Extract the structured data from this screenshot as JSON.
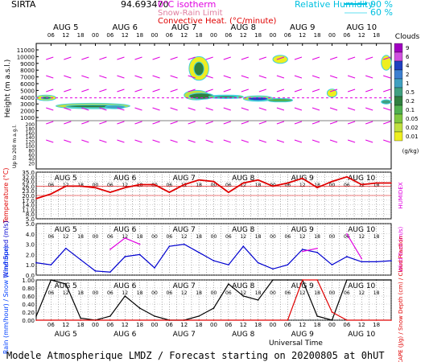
{
  "header": {
    "station": "SIRTA",
    "coord": "94.693470",
    "legend_iso": "0°C isotherm",
    "legend_snow": "Snow-Rain Limit",
    "legend_conv": "Convective Heat. (°C/minute)",
    "rh_label": "Relative Humidity",
    "rh_90": "90 %",
    "rh_60": "60 %"
  },
  "footer": {
    "title": "Modele Atmospherique LMDZ / Forecast starting on 20200805 at 0hUT",
    "time_label": "Universal Time"
  },
  "days": [
    "AUG 5",
    "AUG 6",
    "AUG 7",
    "AUG 8",
    "AUG 9",
    "AUG 10"
  ],
  "hours": [
    "06",
    "12",
    "18",
    "00",
    "06",
    "12",
    "18",
    "00",
    "06",
    "12",
    "18",
    "00",
    "06",
    "12",
    "18",
    "00",
    "06",
    "12",
    "18",
    "00",
    "06",
    "12",
    "18"
  ],
  "colors": {
    "temp": "#e00000",
    "humidex": "#e000e0",
    "wind": "#0000d0",
    "gust": "#e000e0",
    "rain": "#000000",
    "cape": "#e00000",
    "cloud_lo": "#eeee00",
    "cloud_hi": "#a000c0"
  },
  "chart_data": [
    {
      "type": "heatmap",
      "ylabel": "Height (m a.s.l.)",
      "ylabel_low": "Up to 200 m a.g.l.",
      "y_ticks_high": [
        "11000",
        "10000",
        "9000",
        "8000",
        "7000",
        "6000",
        "5000",
        "4000",
        "3000",
        "2000",
        "1000"
      ],
      "y_ticks_low": [
        "200",
        "180",
        "160",
        "140",
        "120",
        "100",
        "80",
        "60",
        "40",
        "20"
      ],
      "colorbar_title": "Clouds",
      "colorbar_ticks": [
        "9",
        "6",
        "4",
        "2",
        "1",
        "0.5",
        "0.2",
        "0.1",
        "0.05",
        "0.02",
        "0.01"
      ],
      "colorbar_unit": "(g/kg)",
      "colorbar_colors": [
        "#a000c0",
        "#d050e0",
        "#2040c0",
        "#3c7fd0",
        "#40a0c0",
        "#40a080",
        "#308040",
        "#50b050",
        "#80c840",
        "#c0e040",
        "#eeee20"
      ]
    },
    {
      "type": "line",
      "ylabel": "Temperature (°C)",
      "y2label": "HUMIDEX",
      "y_ticks": [
        "35.0",
        "32.0",
        "29.0",
        "26.0",
        "23.0",
        "20.0",
        "17.0",
        "14.0",
        "11.0",
        "8.0",
        "5.0"
      ],
      "ylim": [
        5,
        35
      ],
      "x_hours": [
        0,
        6,
        12,
        18,
        24,
        30,
        36,
        42,
        48,
        54,
        60,
        66,
        72,
        78,
        84,
        90,
        96,
        102,
        108,
        114,
        120,
        126,
        132,
        138,
        144
      ],
      "series": [
        {
          "values": [
            18,
            21,
            26,
            26,
            25,
            22,
            25,
            27,
            27,
            22,
            27,
            30,
            29,
            22,
            28,
            30,
            26,
            28,
            31,
            25,
            29,
            32,
            27,
            28,
            28
          ]
        }
      ]
    },
    {
      "type": "line",
      "ylabel": "Wind Speed (m/s)",
      "y2label": "Wind Gust (m/s)",
      "y_ticks": [
        "5.0",
        "4.0",
        "3.0",
        "2.0",
        "1.0",
        "0.0"
      ],
      "ylim": [
        0,
        5
      ],
      "x_hours": [
        0,
        6,
        12,
        18,
        24,
        30,
        36,
        42,
        48,
        54,
        60,
        66,
        72,
        78,
        84,
        90,
        96,
        102,
        108,
        114,
        120,
        126,
        132,
        138,
        144
      ],
      "series": [
        {
          "values": [
            1.2,
            1.0,
            2.6,
            1.5,
            0.4,
            0.3,
            1.8,
            2.0,
            0.7,
            2.8,
            3.0,
            2.2,
            1.4,
            1.0,
            2.8,
            1.2,
            0.6,
            1.0,
            2.5,
            2.2,
            1.0,
            1.8,
            1.3,
            1.3,
            1.4
          ]
        },
        {
          "values": [
            null,
            null,
            null,
            null,
            null,
            2.5,
            3.6,
            3.0,
            null,
            null,
            null,
            null,
            null,
            null,
            null,
            null,
            null,
            null,
            2.3,
            2.6,
            null,
            4.0,
            1.6,
            null,
            null
          ]
        }
      ]
    },
    {
      "type": "line",
      "ylabel": "Rain (mm/hour) / Snow (cm/hour)",
      "y2label": "CAPE (J/g) / Snow Depth (cm) / Cloud Fraction",
      "y_ticks": [
        "1.00",
        "0.80",
        "0.60",
        "0.40",
        "0.20",
        "0.00"
      ],
      "ylim": [
        0,
        1
      ],
      "x_hours": [
        0,
        6,
        12,
        18,
        24,
        30,
        36,
        42,
        48,
        54,
        60,
        66,
        72,
        78,
        84,
        90,
        96,
        102,
        108,
        114,
        120,
        126,
        132,
        138,
        144
      ],
      "series": [
        {
          "values": [
            0.1,
            1.0,
            0.9,
            0.05,
            0.0,
            0.1,
            0.6,
            0.3,
            0.1,
            0.0,
            0.0,
            0.1,
            0.3,
            0.9,
            0.6,
            0.5,
            1.0,
            1.0,
            1.0,
            0.1,
            0.0,
            1.0,
            1.0,
            1.0,
            1.0
          ]
        },
        {
          "values": [
            0,
            0,
            0,
            0,
            0,
            0,
            0,
            0,
            0,
            0,
            0,
            0,
            0,
            0,
            0,
            0,
            0,
            0,
            1.0,
            1.0,
            0.2,
            0.0,
            0,
            0,
            0
          ]
        }
      ]
    }
  ]
}
